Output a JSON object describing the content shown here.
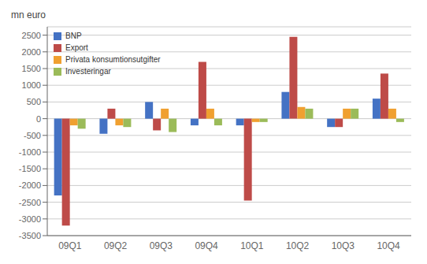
{
  "chart_data": {
    "type": "bar",
    "ylabel": "mn euro",
    "categories": [
      "09Q1",
      "09Q2",
      "09Q3",
      "09Q4",
      "10Q1",
      "10Q2",
      "10Q3",
      "10Q4"
    ],
    "series": [
      {
        "name": "BNP",
        "color": "#4472C4",
        "values": [
          -2300,
          -450,
          500,
          -200,
          -200,
          800,
          -250,
          600
        ]
      },
      {
        "name": "Export",
        "color": "#BE4B48",
        "values": [
          -3200,
          300,
          -350,
          1700,
          -2450,
          2450,
          -250,
          1350
        ]
      },
      {
        "name": "Privata konsumtionsutgifter",
        "color": "#F0A030",
        "values": [
          -200,
          -200,
          300,
          300,
          -100,
          350,
          300,
          300
        ]
      },
      {
        "name": "Investeringar",
        "color": "#9BBB59",
        "values": [
          -300,
          -250,
          -400,
          -200,
          -100,
          300,
          300,
          -100
        ]
      }
    ],
    "ylim": [
      -3500,
      2750
    ],
    "yticks": [
      -3500,
      -3000,
      -2500,
      -2000,
      -1500,
      -1000,
      -500,
      0,
      500,
      1000,
      1500,
      2000,
      2500
    ],
    "grid": true,
    "legend": "upper left"
  }
}
